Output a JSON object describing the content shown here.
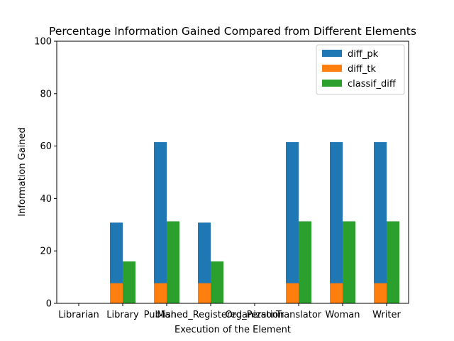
{
  "chart_data": {
    "type": "bar",
    "title": "Percentage Information Gained Compared from Different Elements",
    "xlabel": "Execution of the Element",
    "ylabel": "Information Gained",
    "ylim": [
      0,
      100
    ],
    "yticks": [
      0,
      20,
      40,
      60,
      80,
      100
    ],
    "grid": false,
    "legend_position": "top-right",
    "categories": [
      "Librarian",
      "Library",
      "Man",
      "Published_Registered_Person",
      "Organization",
      "Translator",
      "Woman",
      "Writer"
    ],
    "series": [
      {
        "name": "diff_pk",
        "color": "#1f77b4",
        "values": [
          0,
          30.8,
          61.5,
          30.8,
          0,
          61.5,
          61.5,
          61.5
        ]
      },
      {
        "name": "diff_tk",
        "color": "#ff7f0e",
        "values": [
          0,
          7.7,
          7.7,
          7.7,
          0,
          7.7,
          7.7,
          7.7
        ]
      },
      {
        "name": "classif_diff",
        "color": "#2ca02c",
        "values": [
          0,
          16,
          31.3,
          16,
          0,
          31.3,
          31.3,
          31.3
        ]
      }
    ]
  }
}
